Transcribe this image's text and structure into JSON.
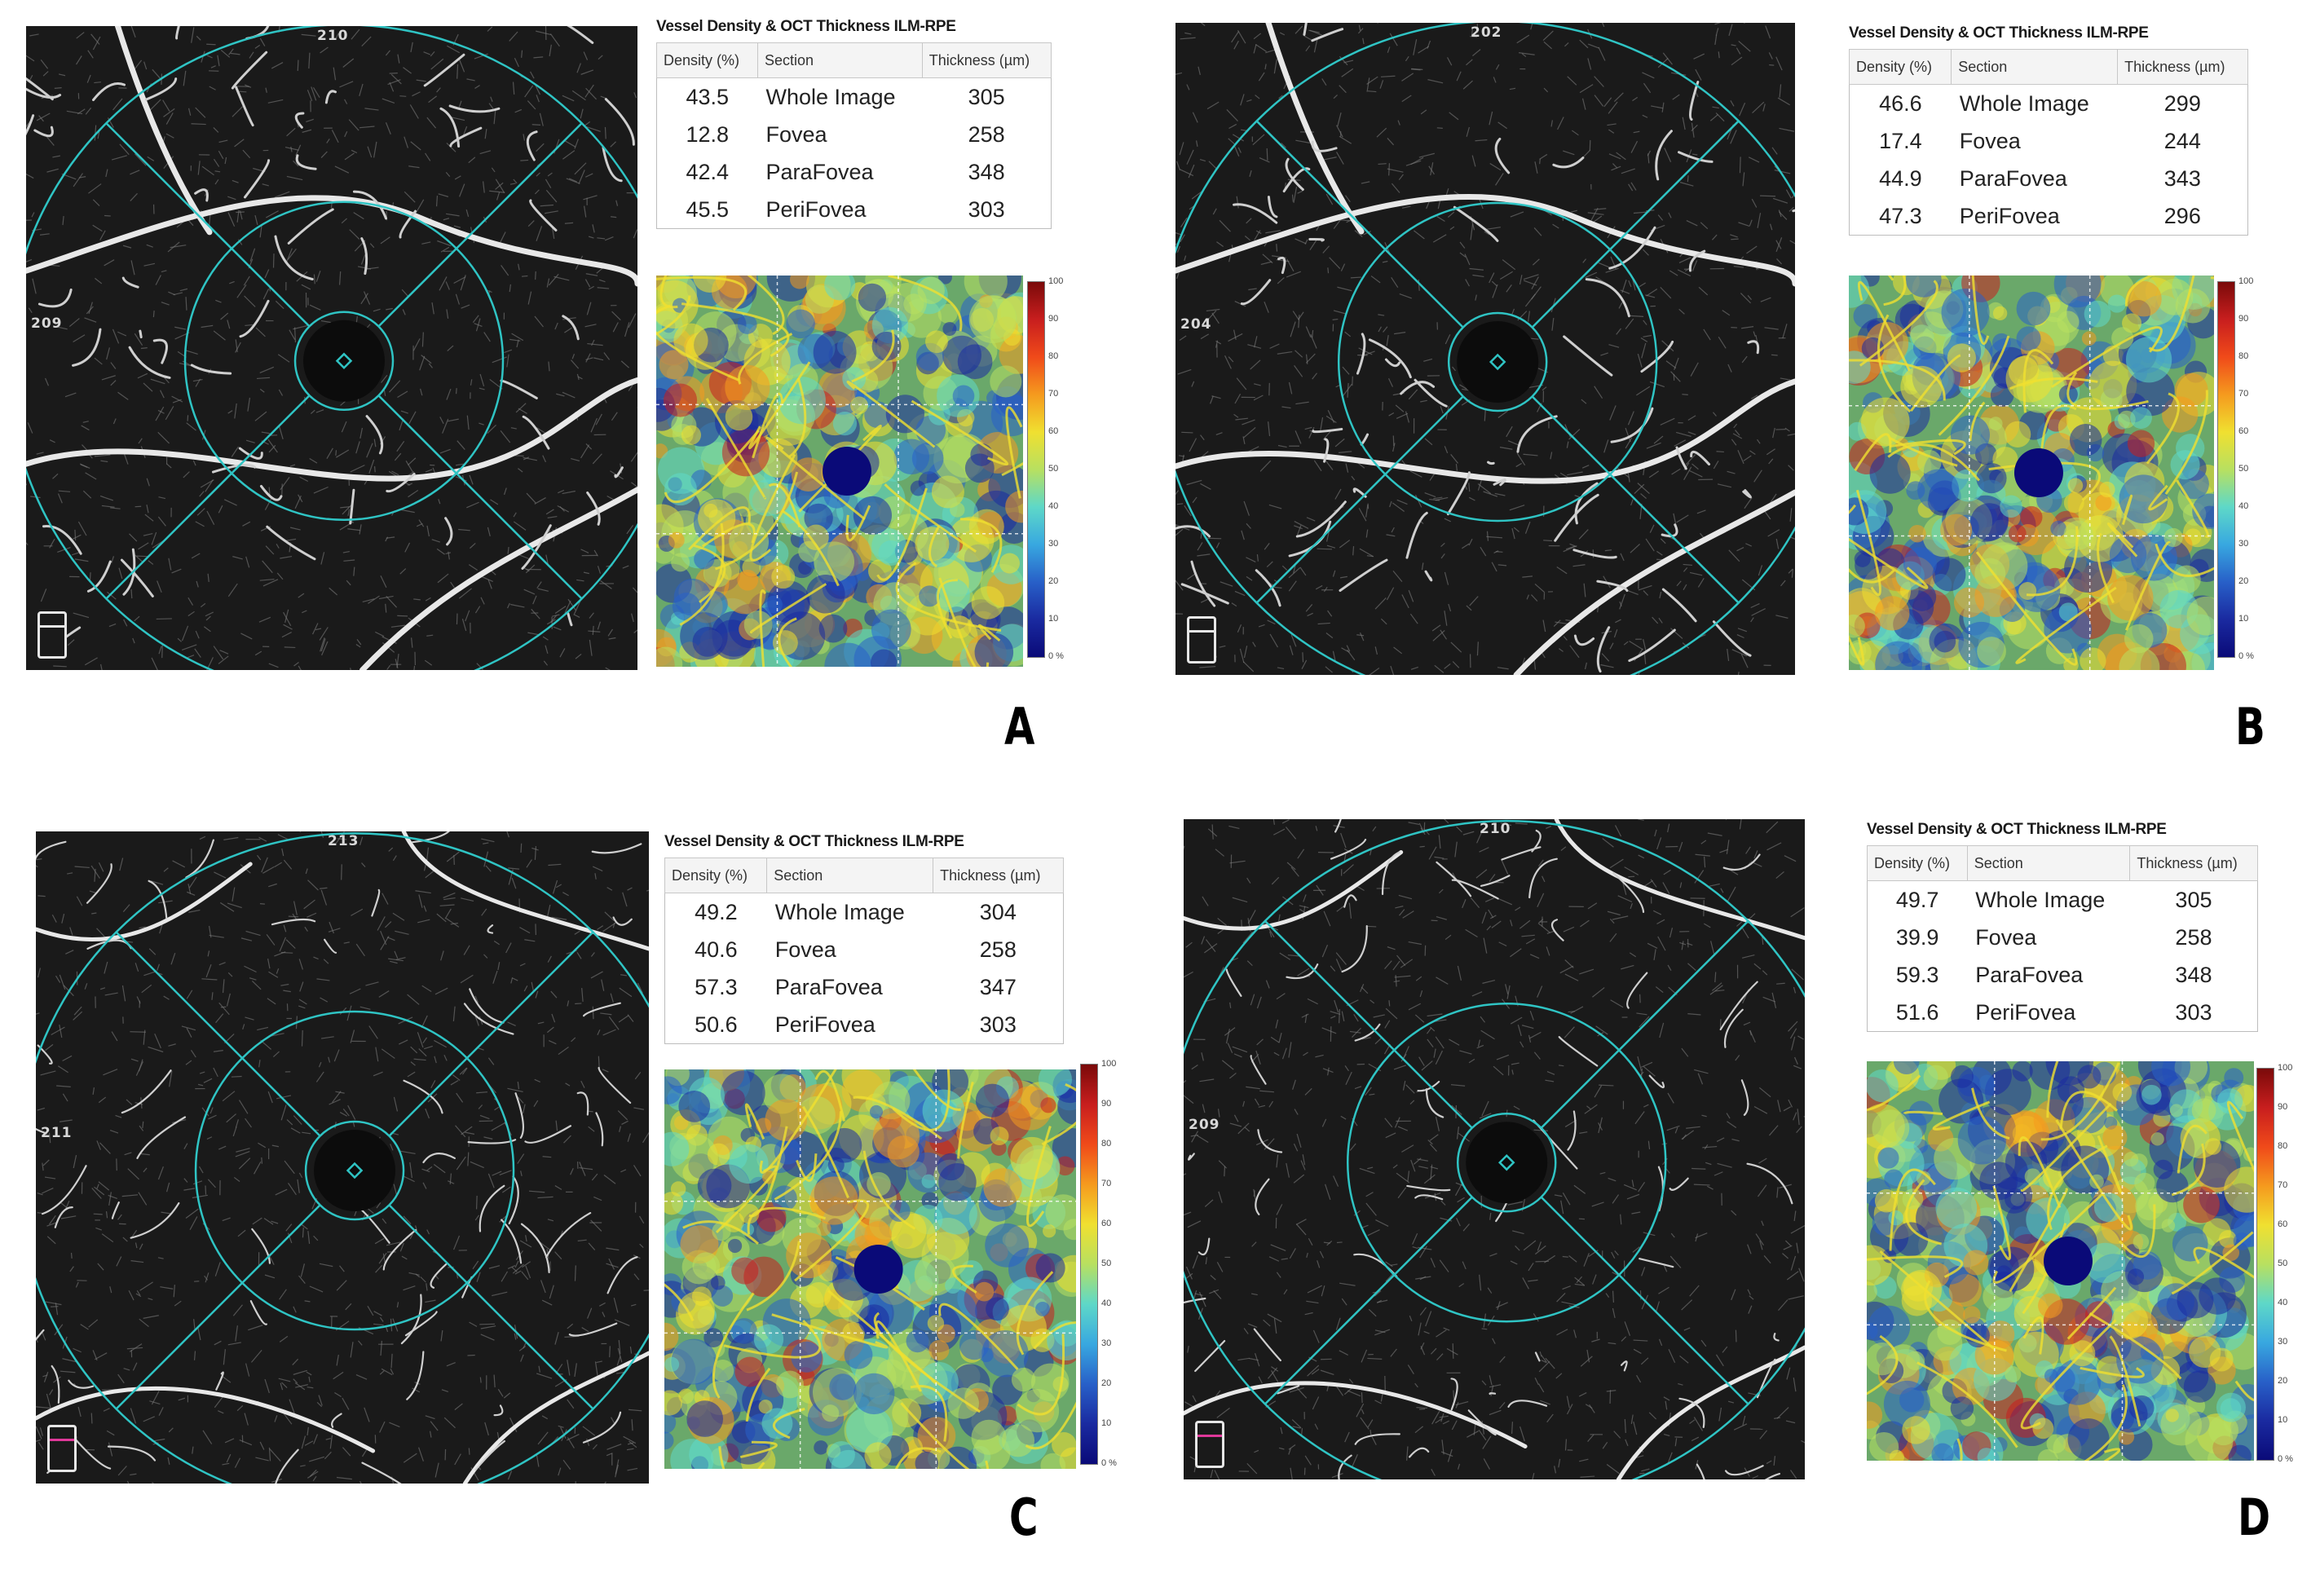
{
  "panels": [
    {
      "label": "A",
      "top_label": "210",
      "left_label": "209",
      "table_title": "Vessel Density & OCT Thickness ILM-RPE",
      "headers": [
        "Density (%)",
        "Section",
        "Thickness (µm)"
      ],
      "rows": [
        {
          "density": "43.5",
          "section": "Whole Image",
          "thickness": "305"
        },
        {
          "density": "12.8",
          "section": "Fovea",
          "thickness": "258"
        },
        {
          "density": "42.4",
          "section": "ParaFovea",
          "thickness": "348"
        },
        {
          "density": "45.5",
          "section": "PeriFovea",
          "thickness": "303"
        }
      ],
      "colorbar_ticks": [
        "100",
        "90",
        "80",
        "70",
        "60",
        "50",
        "40",
        "30",
        "20",
        "10",
        "0 %"
      ]
    },
    {
      "label": "B",
      "top_label": "202",
      "left_label": "204",
      "table_title": "Vessel Density & OCT Thickness ILM-RPE",
      "headers": [
        "Density (%)",
        "Section",
        "Thickness (µm)"
      ],
      "rows": [
        {
          "density": "46.6",
          "section": "Whole Image",
          "thickness": "299"
        },
        {
          "density": "17.4",
          "section": "Fovea",
          "thickness": "244"
        },
        {
          "density": "44.9",
          "section": "ParaFovea",
          "thickness": "343"
        },
        {
          "density": "47.3",
          "section": "PeriFovea",
          "thickness": "296"
        }
      ],
      "colorbar_ticks": [
        "100",
        "90",
        "80",
        "70",
        "60",
        "50",
        "40",
        "30",
        "20",
        "10",
        "0 %"
      ]
    },
    {
      "label": "C",
      "top_label": "213",
      "left_label": "211",
      "table_title": "Vessel Density & OCT Thickness ILM-RPE",
      "headers": [
        "Density (%)",
        "Section",
        "Thickness (µm)"
      ],
      "rows": [
        {
          "density": "49.2",
          "section": "Whole Image",
          "thickness": "304"
        },
        {
          "density": "40.6",
          "section": "Fovea",
          "thickness": "258"
        },
        {
          "density": "57.3",
          "section": "ParaFovea",
          "thickness": "347"
        },
        {
          "density": "50.6",
          "section": "PeriFovea",
          "thickness": "303"
        }
      ],
      "colorbar_ticks": [
        "100",
        "90",
        "80",
        "70",
        "60",
        "50",
        "40",
        "30",
        "20",
        "10",
        "0 %"
      ]
    },
    {
      "label": "D",
      "top_label": "210",
      "left_label": "209",
      "table_title": "Vessel Density & OCT Thickness ILM-RPE",
      "headers": [
        "Density (%)",
        "Section",
        "Thickness (µm)"
      ],
      "rows": [
        {
          "density": "49.7",
          "section": "Whole Image",
          "thickness": "305"
        },
        {
          "density": "39.9",
          "section": "Fovea",
          "thickness": "258"
        },
        {
          "density": "59.3",
          "section": "ParaFovea",
          "thickness": "348"
        },
        {
          "density": "51.6",
          "section": "PeriFovea",
          "thickness": "303"
        }
      ],
      "colorbar_ticks": [
        "100",
        "90",
        "80",
        "70",
        "60",
        "50",
        "40",
        "30",
        "20",
        "10",
        "0 %"
      ]
    }
  ],
  "colors": {
    "grid_overlay": "#2fc4c4",
    "angio_background": "#1a1a1a",
    "colormap": [
      "#7a0a0a",
      "#c81e1e",
      "#f04a1a",
      "#f59a1e",
      "#f0e030",
      "#b8e060",
      "#5ed8c8",
      "#38a8e0",
      "#2860c8",
      "#1a2aa0",
      "#0a0a78"
    ]
  }
}
